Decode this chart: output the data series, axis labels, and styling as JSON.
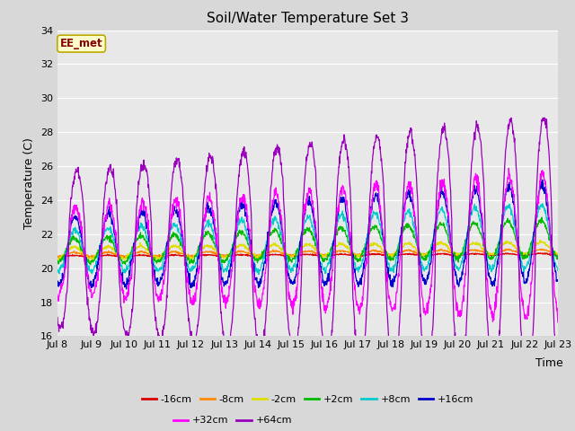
{
  "title": "Soil/Water Temperature Set 3",
  "xlabel": "Time",
  "ylabel": "Temperature (C)",
  "ylim": [
    16,
    34
  ],
  "bg_color": "#d8d8d8",
  "plot_bg": "#e8e8e8",
  "annotation_text": "EE_met",
  "annotation_bg": "#ffffcc",
  "annotation_border": "#bbaa00",
  "annotation_text_color": "#880000",
  "series": [
    {
      "label": "-16cm",
      "color": "#dd0000"
    },
    {
      "label": "-8cm",
      "color": "#ff8800"
    },
    {
      "label": "-2cm",
      "color": "#dddd00"
    },
    {
      "label": "+2cm",
      "color": "#00bb00"
    },
    {
      "label": "+8cm",
      "color": "#00cccc"
    },
    {
      "label": "+16cm",
      "color": "#0000cc"
    },
    {
      "label": "+32cm",
      "color": "#ff00ff"
    },
    {
      "label": "+64cm",
      "color": "#9900bb"
    }
  ],
  "tick_labels": [
    "Jul 8",
    "Jul 9",
    "Jul 10",
    "Jul 11",
    "Jul 12",
    "Jul 13",
    "Jul 14",
    "Jul 15",
    "Jul 16",
    "Jul 17",
    "Jul 18",
    "Jul 19",
    "Jul 20",
    "Jul 21",
    "Jul 22",
    "Jul 23"
  ],
  "n_days": 15,
  "n_points": 1440
}
